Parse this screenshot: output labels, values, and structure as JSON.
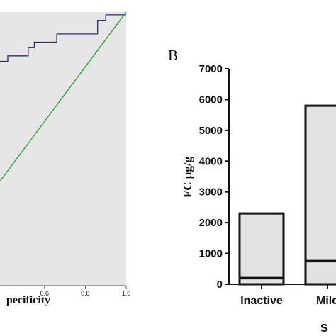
{
  "chart_data": [
    {
      "type": "line",
      "xlabel": "pecificity",
      "x_ticks": [
        "0.6",
        "0.8",
        "1.0"
      ],
      "xlim": [
        0.0,
        1.0
      ],
      "ylim": [
        0.0,
        1.0
      ],
      "grid": false,
      "background": "#e6e6e6",
      "series": [
        {
          "color": "#1f2f7a",
          "x": [
            0.0,
            0.42,
            0.42,
            0.52,
            0.52,
            0.55,
            0.55,
            0.66,
            0.66,
            0.86,
            0.86,
            0.9,
            0.9,
            1.0
          ],
          "y": [
            0.82,
            0.82,
            0.84,
            0.84,
            0.87,
            0.87,
            0.89,
            0.89,
            0.92,
            0.92,
            0.97,
            0.97,
            0.99,
            0.99
          ]
        },
        {
          "color": "#1fa01f",
          "x": [
            0.0,
            1.0
          ],
          "y": [
            0.0,
            1.0
          ]
        }
      ]
    },
    {
      "type": "box",
      "panel_label": "B",
      "ylabel": "FC μg/g",
      "ylim": [
        0,
        7000
      ],
      "y_ticks": [
        "0",
        "1000",
        "2000",
        "3000",
        "4000",
        "5000",
        "6000",
        "7000"
      ],
      "categories": [
        "Inactive",
        "Mild"
      ],
      "x_axis_title_partial": "S",
      "fill": "#e2e2e2",
      "boxes": [
        {
          "category": "Inactive",
          "low": 0,
          "median": 200,
          "high": 2300
        },
        {
          "category": "Mild",
          "low": 0,
          "median": 750,
          "high": 5800
        }
      ]
    }
  ]
}
